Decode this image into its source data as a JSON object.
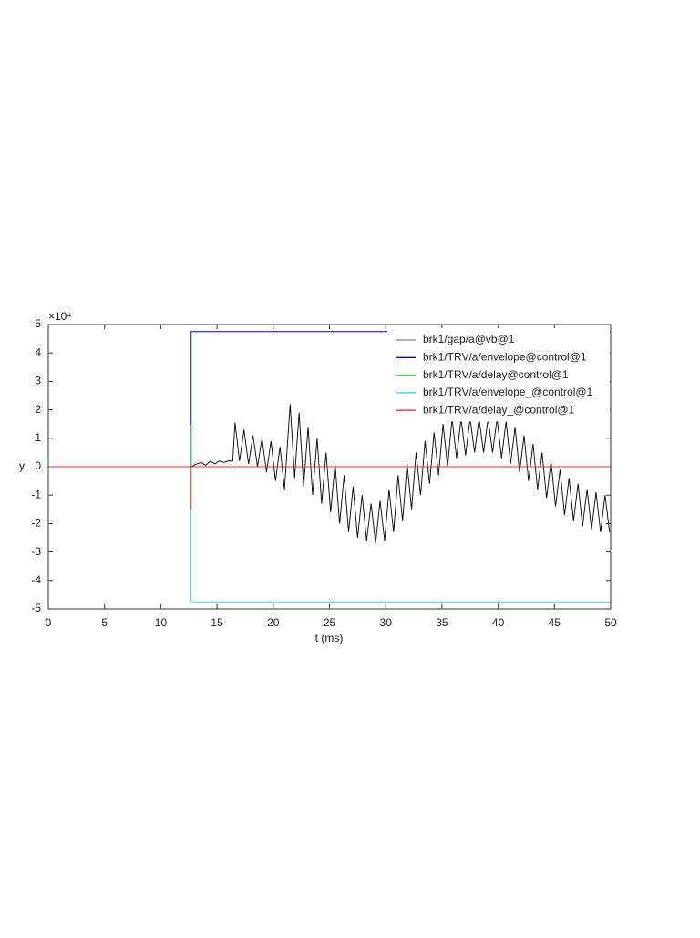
{
  "chart_data": {
    "type": "line",
    "y_exponent_label": "×10⁴",
    "xlabel": "t (ms)",
    "ylabel": "y",
    "xlim": [
      0,
      50
    ],
    "xticks": [
      0,
      5,
      10,
      15,
      20,
      25,
      30,
      35,
      40,
      45,
      50
    ],
    "ylim": [
      -5,
      5
    ],
    "yticks": [
      -5,
      -4,
      -3,
      -2,
      -1,
      0,
      1,
      2,
      3,
      4,
      5
    ],
    "grid": false,
    "box": true,
    "legend": "upper right",
    "series": [
      {
        "name": "brk1/gap/a@vb@1",
        "color": "#000000",
        "legend_color": "#999999",
        "x": [
          12.7,
          13.2,
          13.6,
          14.0,
          14.4,
          14.8,
          15.2,
          15.6,
          16.0,
          16.4,
          16.6,
          17.0,
          17.4,
          17.8,
          18.2,
          18.6,
          19.0,
          19.4,
          19.8,
          20.2,
          20.6,
          21.0,
          21.5,
          21.9,
          22.3,
          22.7,
          23.1,
          23.5,
          23.9,
          24.3,
          24.7,
          25.1,
          25.5,
          25.9,
          26.3,
          26.7,
          27.1,
          27.5,
          27.9,
          28.3,
          28.7,
          29.1,
          29.5,
          29.9,
          30.3,
          30.7,
          31.1,
          31.5,
          31.9,
          32.3,
          32.7,
          33.1,
          33.5,
          33.9,
          34.3,
          34.7,
          35.1,
          35.5,
          35.9,
          36.3,
          36.7,
          37.1,
          37.5,
          37.9,
          38.3,
          38.7,
          39.1,
          39.5,
          39.9,
          40.3,
          40.7,
          41.1,
          41.5,
          41.9,
          42.3,
          42.7,
          43.1,
          43.5,
          43.9,
          44.3,
          44.7,
          45.1,
          45.5,
          45.9,
          46.3,
          46.7,
          47.1,
          47.5,
          47.9,
          48.3,
          48.7,
          49.1,
          49.5,
          49.9
        ],
        "values": [
          0,
          0.1,
          0.15,
          0.05,
          0.2,
          0.1,
          0.2,
          0.15,
          0.2,
          0.2,
          1.55,
          0.2,
          1.3,
          0.1,
          1.1,
          0.0,
          1.0,
          -0.2,
          0.9,
          -0.5,
          0.7,
          -0.8,
          2.2,
          -0.4,
          1.9,
          -0.7,
          1.4,
          -1.0,
          1.0,
          -1.3,
          0.5,
          -1.6,
          0.1,
          -2.0,
          -0.3,
          -2.3,
          -0.7,
          -2.5,
          -1.0,
          -2.6,
          -1.3,
          -2.7,
          -1.2,
          -2.6,
          -0.8,
          -2.3,
          -0.3,
          -1.9,
          0.1,
          -1.5,
          0.5,
          -1.0,
          0.9,
          -0.6,
          1.2,
          -0.3,
          1.5,
          0.0,
          1.7,
          0.3,
          1.7,
          0.4,
          1.7,
          0.5,
          1.7,
          0.5,
          1.7,
          0.5,
          1.7,
          0.3,
          1.6,
          0.1,
          1.4,
          -0.2,
          1.1,
          -0.5,
          0.8,
          -0.8,
          0.5,
          -1.1,
          0.2,
          -1.4,
          -0.1,
          -1.7,
          -0.4,
          -1.9,
          -0.6,
          -2.1,
          -0.8,
          -2.2,
          -0.9,
          -2.3,
          -1.0,
          -2.3
        ]
      },
      {
        "name": "brk1/TRV/a/envelope@control@1",
        "color": "#0000cc",
        "x": [
          12.7,
          12.7,
          50
        ],
        "values": [
          0,
          4.75,
          4.75
        ]
      },
      {
        "name": "brk1/TRV/a/delay@control@1",
        "color": "#33dd33",
        "x": [
          12.7,
          12.7,
          50
        ],
        "values": [
          1.5,
          0,
          0
        ]
      },
      {
        "name": "brk1/TRV/a/envelope_@control@1",
        "color": "#33dddd",
        "x": [
          12.7,
          12.7,
          50
        ],
        "values": [
          0,
          -4.75,
          -4.75
        ]
      },
      {
        "name": "brk1/TRV/a/delay_@control@1",
        "color": "#ee3333",
        "x": [
          0,
          12.7,
          12.7,
          12.7,
          50
        ],
        "values": [
          0,
          0,
          -1.5,
          0,
          0
        ]
      }
    ]
  }
}
